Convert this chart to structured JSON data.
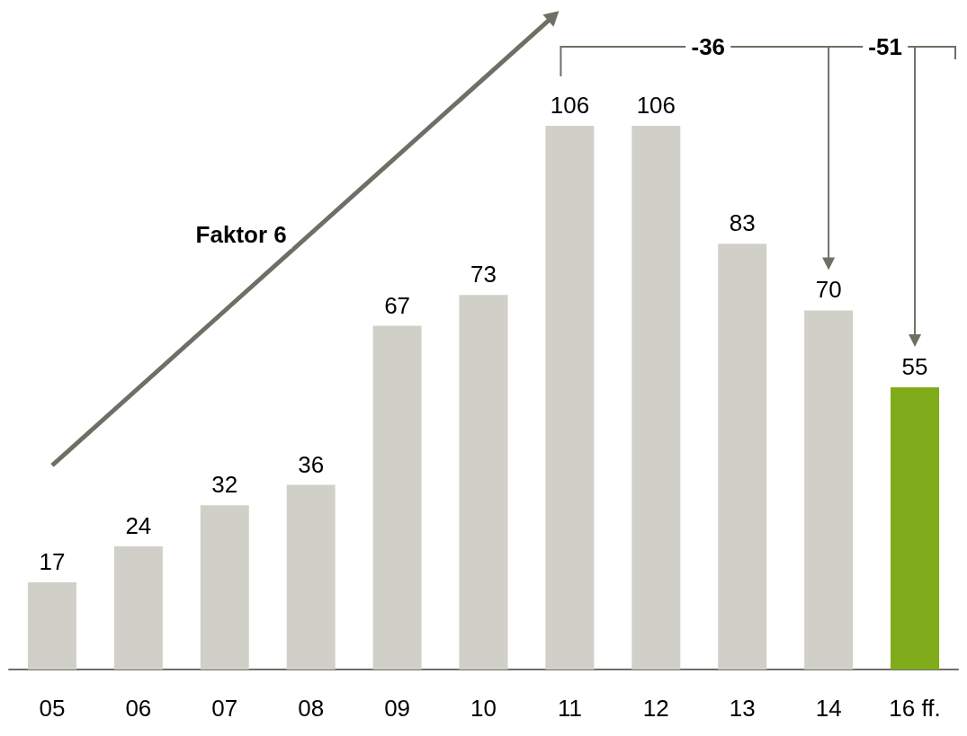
{
  "chart_data": {
    "type": "bar",
    "categories": [
      "05",
      "06",
      "07",
      "08",
      "09",
      "10",
      "11",
      "12",
      "13",
      "14",
      "16 ff."
    ],
    "values": [
      17,
      24,
      32,
      36,
      67,
      73,
      106,
      106,
      83,
      70,
      55
    ],
    "colors": [
      "#d0d0c8",
      "#d0d0c8",
      "#d0d0c8",
      "#d0d0c8",
      "#d0d0c8",
      "#d0d0c8",
      "#d0d0c8",
      "#d0d0c8",
      "#d0d0c8",
      "#d0d0c8",
      "#80ab1a"
    ],
    "data_labels": true,
    "annotations": [
      "Faktor 6",
      "-36",
      "-51"
    ]
  }
}
